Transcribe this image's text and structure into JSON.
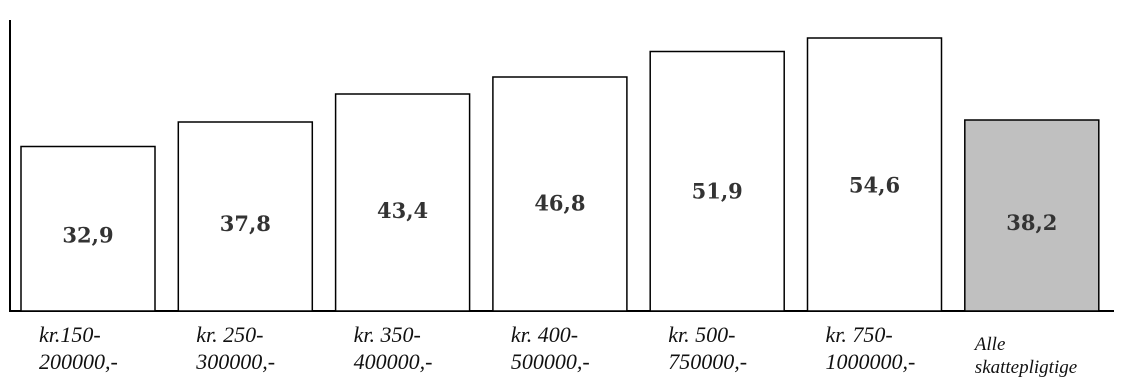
{
  "chart_data": {
    "type": "bar",
    "categories": [
      [
        "kr.150-",
        "200000,-"
      ],
      [
        "kr. 250-",
        "300000,-"
      ],
      [
        "kr. 350-",
        "400000,-"
      ],
      [
        "kr. 400-",
        "500000,-"
      ],
      [
        "kr. 500-",
        "750000,-"
      ],
      [
        "kr. 750-",
        "1000000,-"
      ],
      [
        "Alle",
        "skattepligtige"
      ]
    ],
    "values": [
      32.9,
      37.8,
      43.4,
      46.8,
      51.9,
      54.6,
      38.2
    ],
    "value_labels": [
      "32,9",
      "37,8",
      "43,4",
      "46,8",
      "51,9",
      "54,6",
      "38,2"
    ],
    "title": "",
    "xlabel": "",
    "ylabel": "",
    "ylim": [
      0,
      60
    ],
    "grid": false,
    "legend": "none",
    "colors": {
      "bar_fill": "#ffffff",
      "highlight_fill": "#c0c0c0",
      "stroke": "#000000",
      "value_text": "#333333"
    },
    "highlight_index": 6
  }
}
